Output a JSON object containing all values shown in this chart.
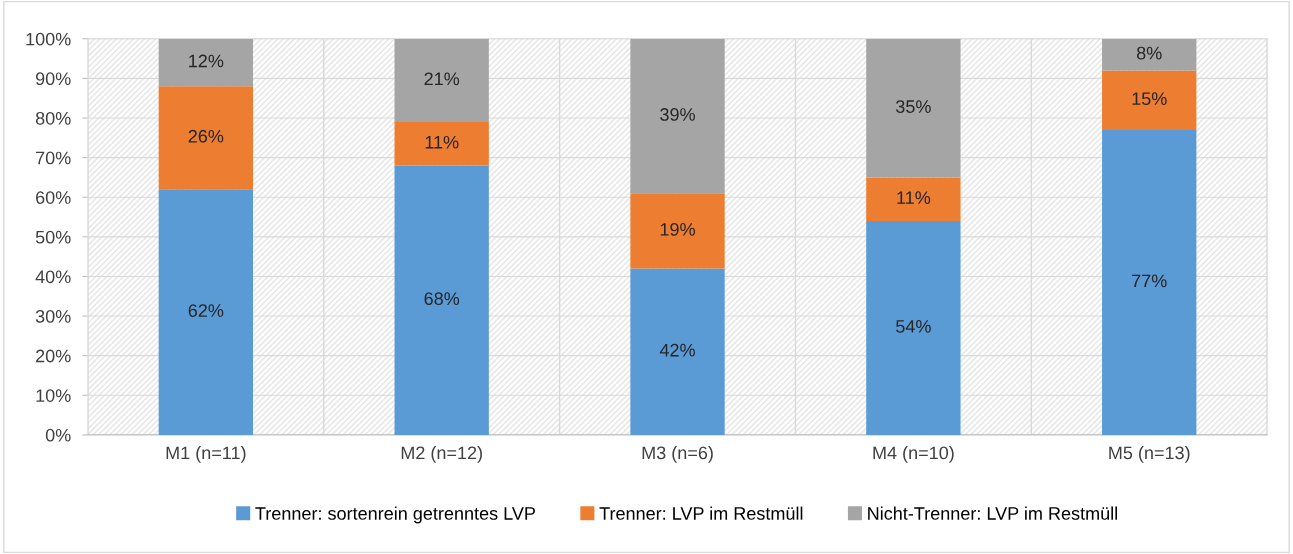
{
  "chart_data": {
    "type": "bar",
    "stacked": true,
    "categories": [
      "M1 (n=11)",
      "M2 (n=12)",
      "M3 (n=6)",
      "M4 (n=10)",
      "M5 (n=13)"
    ],
    "series": [
      {
        "name": "Trenner: sortenrein getrenntes LVP",
        "color": "#5b9bd5",
        "values": [
          62,
          68,
          42,
          54,
          77
        ],
        "value_labels": [
          "62%",
          "68%",
          "42%",
          "54%",
          "77%"
        ]
      },
      {
        "name": "Trenner: LVP im Restmüll",
        "color": "#ed7d31",
        "values": [
          26,
          11,
          19,
          11,
          15
        ],
        "value_labels": [
          "26%",
          "11%",
          "19%",
          "11%",
          "15%"
        ]
      },
      {
        "name": "Nicht-Trenner: LVP im Restmüll",
        "color": "#a5a5a5",
        "values": [
          12,
          21,
          39,
          35,
          8
        ],
        "value_labels": [
          "12%",
          "21%",
          "39%",
          "35%",
          "8%"
        ]
      }
    ],
    "ylim": [
      0,
      100
    ],
    "yticks": [
      {
        "value": 0,
        "label": "0%"
      },
      {
        "value": 10,
        "label": "10%"
      },
      {
        "value": 20,
        "label": "20%"
      },
      {
        "value": 30,
        "label": "30%"
      },
      {
        "value": 40,
        "label": "40%"
      },
      {
        "value": 50,
        "label": "50%"
      },
      {
        "value": 60,
        "label": "60%"
      },
      {
        "value": 70,
        "label": "70%"
      },
      {
        "value": 80,
        "label": "80%"
      },
      {
        "value": 90,
        "label": "90%"
      },
      {
        "value": 100,
        "label": "100%"
      }
    ],
    "grid": "y",
    "legend": "bottom"
  }
}
